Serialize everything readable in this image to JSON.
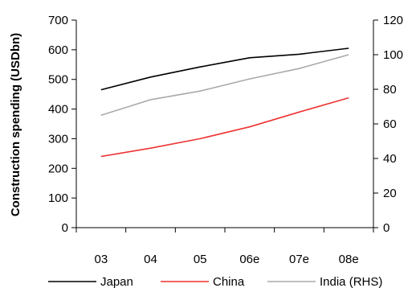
{
  "chart_data": {
    "type": "line",
    "categories": [
      "03",
      "04",
      "05",
      "06e",
      "07e",
      "08e"
    ],
    "ylabel": "Construction spending (USDbn)",
    "left_axis": {
      "min": 0,
      "max": 700,
      "step": 100,
      "ticks": [
        "0",
        "100",
        "200",
        "300",
        "400",
        "500",
        "600",
        "700"
      ]
    },
    "right_axis": {
      "min": 0,
      "max": 120,
      "step": 20,
      "ticks": [
        "0",
        "20",
        "40",
        "60",
        "80",
        "100",
        "120"
      ]
    },
    "grid": false,
    "legend_position": "bottom",
    "series": [
      {
        "name": "Japan",
        "axis": "left",
        "color": "#000000",
        "values": [
          465,
          508,
          542,
          573,
          585,
          605
        ]
      },
      {
        "name": "China",
        "axis": "left",
        "color": "#ee3333",
        "values": [
          240,
          268,
          300,
          340,
          390,
          438
        ]
      },
      {
        "name": "India (RHS)",
        "axis": "right",
        "color": "#aaaaaa",
        "values": [
          65,
          74,
          79,
          86,
          92,
          100
        ]
      }
    ]
  }
}
